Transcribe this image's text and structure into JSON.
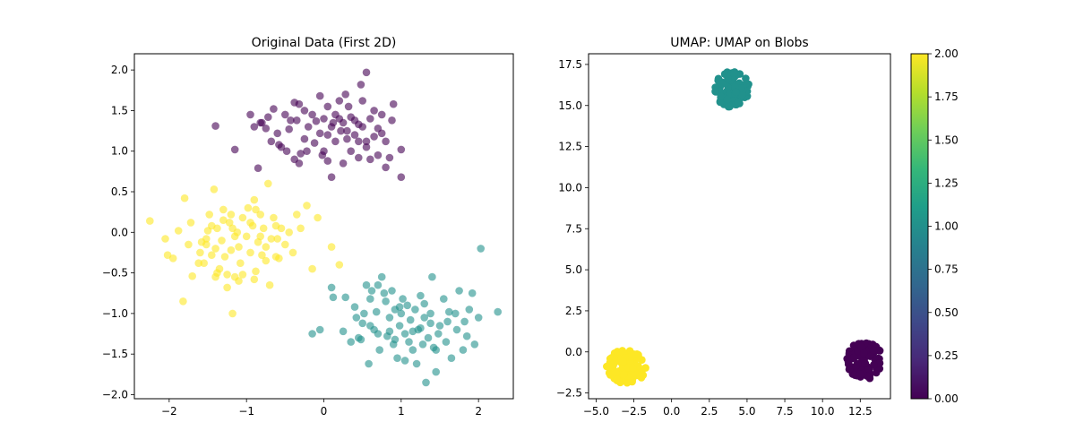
{
  "chart_data": [
    {
      "type": "scatter",
      "title": "Original Data (First 2D)",
      "xlim": [
        -2.45,
        2.45
      ],
      "ylim": [
        -2.05,
        2.2
      ],
      "xticks": [
        -2,
        -1,
        0,
        1,
        2
      ],
      "xtick_labels": [
        "−2",
        "−1",
        "0",
        "1",
        "2"
      ],
      "yticks": [
        -2.0,
        -1.5,
        -1.0,
        -0.5,
        0.0,
        0.5,
        1.0,
        1.5,
        2.0
      ],
      "ytick_labels": [
        "−2.0",
        "−1.5",
        "−1.0",
        "−0.5",
        "0.0",
        "0.5",
        "1.0",
        "1.5",
        "2.0"
      ],
      "marker_alpha": 0.6,
      "grid": false,
      "series": [
        {
          "class": 0,
          "color": "#440154",
          "points": [
            [
              -1.4,
              1.31
            ],
            [
              -1.15,
              1.02
            ],
            [
              -0.85,
              0.79
            ],
            [
              -0.72,
              1.42
            ],
            [
              -0.8,
              1.35
            ],
            [
              -0.9,
              1.3
            ],
            [
              -0.65,
              1.52
            ],
            [
              -0.6,
              1.22
            ],
            [
              -0.55,
              1.05
            ],
            [
              -0.5,
              1.45
            ],
            [
              -0.45,
              1.27
            ],
            [
              -0.43,
              1.38
            ],
            [
              -0.38,
              1.6
            ],
            [
              -0.32,
              1.58
            ],
            [
              -0.25,
              1.5
            ],
            [
              -0.2,
              1.3
            ],
            [
              -0.15,
              1.45
            ],
            [
              -0.1,
              1.37
            ],
            [
              -0.05,
              1.68
            ],
            [
              0.0,
              1.4
            ],
            [
              0.05,
              1.55
            ],
            [
              0.1,
              1.3
            ],
            [
              0.15,
              1.45
            ],
            [
              0.2,
              1.62
            ],
            [
              0.25,
              1.35
            ],
            [
              0.28,
              1.7
            ],
            [
              0.32,
              1.55
            ],
            [
              0.35,
              1.42
            ],
            [
              0.4,
              1.2
            ],
            [
              0.45,
              1.33
            ],
            [
              0.48,
              1.82
            ],
            [
              0.5,
              1.62
            ],
            [
              0.55,
              1.05
            ],
            [
              0.6,
              1.4
            ],
            [
              0.65,
              1.5
            ],
            [
              0.7,
              1.28
            ],
            [
              0.75,
              1.22
            ],
            [
              0.8,
              1.12
            ],
            [
              0.88,
              1.38
            ],
            [
              0.9,
              1.58
            ],
            [
              1.0,
              1.02
            ],
            [
              1.0,
              0.68
            ],
            [
              0.85,
              0.92
            ],
            [
              0.6,
              0.9
            ],
            [
              0.55,
              1.97
            ],
            [
              0.45,
              1.12
            ],
            [
              0.35,
              1.0
            ],
            [
              0.22,
              1.25
            ],
            [
              0.12,
              1.35
            ],
            [
              -0.05,
              1.22
            ],
            [
              -0.12,
              1.1
            ],
            [
              -0.22,
              1.0
            ],
            [
              -0.32,
              0.85
            ],
            [
              -0.38,
              0.9
            ],
            [
              -0.48,
              1.0
            ],
            [
              -0.58,
              1.08
            ],
            [
              -0.68,
              1.12
            ],
            [
              -0.75,
              1.28
            ],
            [
              -0.82,
              1.35
            ],
            [
              -0.95,
              1.45
            ],
            [
              0.7,
              0.95
            ],
            [
              0.8,
              0.8
            ],
            [
              0.75,
              1.45
            ],
            [
              0.65,
              1.18
            ],
            [
              0.4,
              1.38
            ],
            [
              0.3,
              1.15
            ],
            [
              0.05,
              0.88
            ],
            [
              -0.02,
              0.95
            ],
            [
              0.1,
              0.68
            ],
            [
              0.0,
              1.0
            ],
            [
              0.15,
              1.12
            ],
            [
              0.3,
              1.25
            ],
            [
              -0.25,
              1.15
            ],
            [
              -0.35,
              1.38
            ],
            [
              0.5,
              1.3
            ],
            [
              0.2,
              1.4
            ],
            [
              0.05,
              1.2
            ],
            [
              0.25,
              0.85
            ],
            [
              -0.3,
              0.97
            ],
            [
              0.45,
              0.92
            ],
            [
              0.55,
              1.12
            ]
          ]
        },
        {
          "class": 1,
          "color": "#21918c",
          "points": [
            [
              -0.15,
              -1.25
            ],
            [
              -0.05,
              -1.2
            ],
            [
              0.1,
              -0.68
            ],
            [
              0.12,
              -0.8
            ],
            [
              0.28,
              -0.8
            ],
            [
              0.25,
              -1.22
            ],
            [
              0.35,
              -1.35
            ],
            [
              0.4,
              -0.92
            ],
            [
              0.42,
              -1.05
            ],
            [
              0.45,
              -1.3
            ],
            [
              0.5,
              -1.12
            ],
            [
              0.52,
              -1.0
            ],
            [
              0.55,
              -0.65
            ],
            [
              0.58,
              -1.62
            ],
            [
              0.6,
              -0.82
            ],
            [
              0.62,
              -0.72
            ],
            [
              0.65,
              -1.2
            ],
            [
              0.68,
              -0.98
            ],
            [
              0.7,
              -0.65
            ],
            [
              0.72,
              -1.45
            ],
            [
              0.75,
              -0.55
            ],
            [
              0.78,
              -0.75
            ],
            [
              0.8,
              -0.85
            ],
            [
              0.82,
              -1.28
            ],
            [
              0.85,
              -1.05
            ],
            [
              0.88,
              -0.72
            ],
            [
              0.9,
              -1.38
            ],
            [
              0.92,
              -0.95
            ],
            [
              0.95,
              -1.55
            ],
            [
              0.98,
              -1.15
            ],
            [
              1.0,
              -1.0
            ],
            [
              1.02,
              -0.82
            ],
            [
              1.05,
              -1.25
            ],
            [
              1.08,
              -0.9
            ],
            [
              1.1,
              -1.35
            ],
            [
              1.12,
              -1.08
            ],
            [
              1.15,
              -1.45
            ],
            [
              1.18,
              -0.95
            ],
            [
              1.2,
              -1.62
            ],
            [
              1.22,
              -1.2
            ],
            [
              1.25,
              -0.78
            ],
            [
              1.28,
              -1.38
            ],
            [
              1.3,
              -1.05
            ],
            [
              1.32,
              -1.85
            ],
            [
              1.35,
              -1.3
            ],
            [
              1.38,
              -1.0
            ],
            [
              1.4,
              -0.55
            ],
            [
              1.42,
              -1.42
            ],
            [
              1.45,
              -1.72
            ],
            [
              1.48,
              -1.25
            ],
            [
              1.5,
              -1.15
            ],
            [
              1.55,
              -0.82
            ],
            [
              1.58,
              -1.35
            ],
            [
              1.62,
              -0.98
            ],
            [
              1.65,
              -1.55
            ],
            [
              1.7,
              -1.0
            ],
            [
              1.72,
              -1.2
            ],
            [
              1.75,
              -0.72
            ],
            [
              1.8,
              -1.45
            ],
            [
              1.82,
              -1.1
            ],
            [
              1.85,
              -1.28
            ],
            [
              1.88,
              -0.95
            ],
            [
              1.92,
              -0.75
            ],
            [
              1.95,
              -1.38
            ],
            [
              2.0,
              -1.05
            ],
            [
              2.03,
              -0.2
            ],
            [
              2.25,
              -0.98
            ],
            [
              1.6,
              -1.1
            ],
            [
              1.25,
              -1.18
            ],
            [
              0.98,
              -0.92
            ],
            [
              0.85,
              -1.22
            ],
            [
              0.7,
              -1.25
            ],
            [
              0.6,
              -1.15
            ],
            [
              0.48,
              -1.32
            ],
            [
              1.45,
              -1.45
            ],
            [
              1.3,
              -0.88
            ],
            [
              1.05,
              -1.58
            ],
            [
              0.92,
              -1.32
            ],
            [
              1.15,
              -1.22
            ],
            [
              1.38,
              -1.12
            ]
          ]
        },
        {
          "class": 2,
          "color": "#fde725",
          "points": [
            [
              -2.25,
              0.14
            ],
            [
              -2.05,
              -0.08
            ],
            [
              -2.02,
              -0.28
            ],
            [
              -1.95,
              -0.32
            ],
            [
              -1.88,
              0.02
            ],
            [
              -1.82,
              -0.85
            ],
            [
              -1.8,
              0.42
            ],
            [
              -1.75,
              -0.15
            ],
            [
              -1.72,
              0.12
            ],
            [
              -1.7,
              -0.54
            ],
            [
              -1.6,
              -0.25
            ],
            [
              -1.58,
              -0.12
            ],
            [
              -1.55,
              -0.38
            ],
            [
              -1.52,
              -0.15
            ],
            [
              -1.5,
              0.02
            ],
            [
              -1.48,
              0.22
            ],
            [
              -1.45,
              -0.28
            ],
            [
              -1.42,
              0.53
            ],
            [
              -1.4,
              -0.55
            ],
            [
              -1.38,
              0.05
            ],
            [
              -1.35,
              -0.45
            ],
            [
              -1.32,
              -0.1
            ],
            [
              -1.3,
              0.28
            ],
            [
              -1.28,
              -0.3
            ],
            [
              -1.25,
              -0.68
            ],
            [
              -1.22,
              0.12
            ],
            [
              -1.2,
              0.22
            ],
            [
              -1.18,
              -1.0
            ],
            [
              -1.15,
              -0.55
            ],
            [
              -1.12,
              0.0
            ],
            [
              -1.1,
              -0.18
            ],
            [
              -1.08,
              -0.38
            ],
            [
              -1.05,
              0.18
            ],
            [
              -1.0,
              -0.05
            ],
            [
              -0.98,
              0.3
            ],
            [
              -0.95,
              -0.25
            ],
            [
              -0.92,
              0.08
            ],
            [
              -0.9,
              0.4
            ],
            [
              -0.88,
              -0.48
            ],
            [
              -0.85,
              -0.12
            ],
            [
              -0.82,
              0.22
            ],
            [
              -0.8,
              -0.28
            ],
            [
              -0.78,
              0.05
            ],
            [
              -0.75,
              -0.35
            ],
            [
              -0.72,
              0.6
            ],
            [
              -0.7,
              -0.65
            ],
            [
              -0.68,
              -0.08
            ],
            [
              -0.65,
              0.18
            ],
            [
              -0.62,
              -0.3
            ],
            [
              -0.6,
              -0.08
            ],
            [
              -0.55,
              0.05
            ],
            [
              -0.5,
              -0.15
            ],
            [
              -0.45,
              0.0
            ],
            [
              -0.4,
              -0.25
            ],
            [
              -0.35,
              0.22
            ],
            [
              -0.3,
              0.05
            ],
            [
              -0.22,
              0.33
            ],
            [
              -0.15,
              -0.45
            ],
            [
              -0.08,
              0.18
            ],
            [
              0.1,
              -0.18
            ],
            [
              0.2,
              -0.4
            ],
            [
              -0.9,
              -0.58
            ],
            [
              -1.05,
              -0.52
            ],
            [
              -1.25,
              -0.52
            ],
            [
              -1.45,
              0.08
            ],
            [
              -1.62,
              -0.38
            ],
            [
              -1.38,
              -0.5
            ],
            [
              -1.15,
              -0.05
            ],
            [
              -0.95,
              0.12
            ],
            [
              -0.75,
              -0.18
            ],
            [
              -0.62,
              0.08
            ],
            [
              -1.3,
              0.15
            ],
            [
              -1.2,
              -0.22
            ],
            [
              -0.88,
              0.28
            ],
            [
              -1.52,
              -0.08
            ],
            [
              -0.58,
              -0.32
            ],
            [
              -1.1,
              -0.6
            ],
            [
              -0.82,
              -0.05
            ],
            [
              -1.18,
              0.05
            ],
            [
              -1.4,
              -0.2
            ]
          ]
        }
      ]
    },
    {
      "type": "scatter",
      "title": "UMAP: UMAP on Blobs",
      "xlim": [
        -5.5,
        14.5
      ],
      "ylim": [
        -2.85,
        18.15
      ],
      "xticks": [
        -5.0,
        -2.5,
        0.0,
        2.5,
        5.0,
        7.5,
        10.0,
        12.5
      ],
      "xtick_labels": [
        "−5.0",
        "−2.5",
        "0.0",
        "2.5",
        "5.0",
        "7.5",
        "10.0",
        "12.5"
      ],
      "yticks": [
        -2.5,
        0.0,
        2.5,
        5.0,
        7.5,
        10.0,
        12.5,
        15.0,
        17.5
      ],
      "ytick_labels": [
        "−2.5",
        "0.0",
        "2.5",
        "5.0",
        "7.5",
        "10.0",
        "12.5",
        "15.0",
        "17.5"
      ],
      "grid": false,
      "clusters": [
        {
          "class": 0,
          "color": "#440154",
          "center": [
            12.8,
            -0.5
          ],
          "radius": [
            1.2,
            1.15
          ],
          "n_points": 100
        },
        {
          "class": 1,
          "color": "#21918c",
          "center": [
            4.0,
            16.0
          ],
          "radius": [
            1.15,
            1.1
          ],
          "n_points": 100
        },
        {
          "class": 2,
          "color": "#fde725",
          "center": [
            -3.0,
            -0.9
          ],
          "radius": [
            1.3,
            1.05
          ],
          "n_points": 100
        }
      ],
      "colorbar": {
        "colormap": "viridis",
        "range": [
          0.0,
          2.0
        ],
        "stops": [
          "#440154",
          "#482878",
          "#3e4989",
          "#31688e",
          "#26828e",
          "#1f9e89",
          "#35b779",
          "#6ece58",
          "#b5de2b",
          "#fde725"
        ],
        "ticks": [
          0.0,
          0.25,
          0.5,
          0.75,
          1.0,
          1.25,
          1.5,
          1.75,
          2.0
        ],
        "tick_labels": [
          "0.00",
          "0.25",
          "0.50",
          "0.75",
          "1.00",
          "1.25",
          "1.50",
          "1.75",
          "2.00"
        ]
      }
    }
  ]
}
